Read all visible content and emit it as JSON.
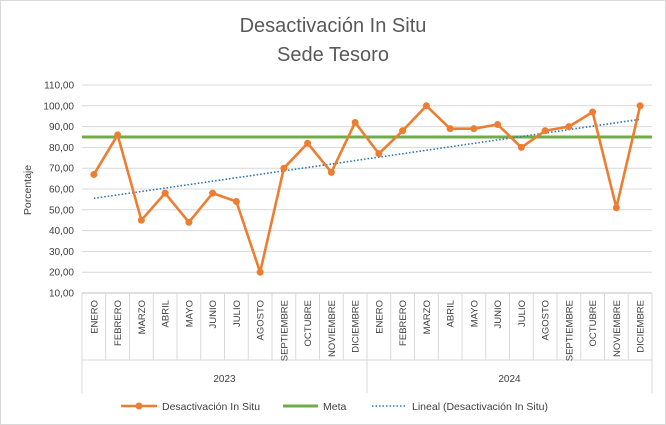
{
  "colors": {
    "series": "#ED7D31",
    "meta": "#70AD47",
    "trend": "#2E75B6",
    "grid": "#D9D9D9",
    "axis": "#BFBFBF"
  },
  "chart_data": {
    "type": "line",
    "title_line1": "Desactivación In Situ",
    "title_line2": "Sede Tesoro",
    "ylabel": "Porcentaje",
    "xlabel": "",
    "ylim": [
      10,
      110
    ],
    "ytick_step": 10,
    "ytick_labels": [
      "10,00",
      "20,00",
      "30,00",
      "40,00",
      "50,00",
      "60,00",
      "70,00",
      "80,00",
      "90,00",
      "100,00",
      "110,00"
    ],
    "grid": true,
    "legend_position": "bottom",
    "groups": [
      {
        "label": "2023",
        "months": [
          "ENERO",
          "FEBRERO",
          "MARZO",
          "ABRIL",
          "MAYO",
          "JUNIO",
          "JULIO",
          "AGOSTO",
          "SEPTIEMBRE",
          "OCTUBRE",
          "NOVIEMBRE",
          "DICIEMBRE"
        ]
      },
      {
        "label": "2024",
        "months": [
          "ENERO",
          "FEBRERO",
          "MARZO",
          "ABRIL",
          "MAYO",
          "JUNIO",
          "JULIO",
          "AGOSTO",
          "SEPTIEMBRE",
          "OCTUBRE",
          "NOVIEMBRE",
          "DICIEMBRE"
        ]
      }
    ],
    "series": [
      {
        "name": "Desactivación In Situ",
        "values": [
          67,
          86,
          45,
          58,
          44,
          58,
          54,
          20,
          70,
          82,
          68,
          92,
          77,
          88,
          100,
          89,
          89,
          91,
          80,
          88,
          90,
          97,
          51,
          100
        ]
      },
      {
        "name": "Meta",
        "values": [
          85,
          85,
          85,
          85,
          85,
          85,
          85,
          85,
          85,
          85,
          85,
          85,
          85,
          85,
          85,
          85,
          85,
          85,
          85,
          85,
          85,
          85,
          85,
          85
        ]
      },
      {
        "name": "Lineal (Desactivación In Situ)",
        "trendline": true,
        "start": 55.5,
        "end": 93.5
      }
    ]
  }
}
